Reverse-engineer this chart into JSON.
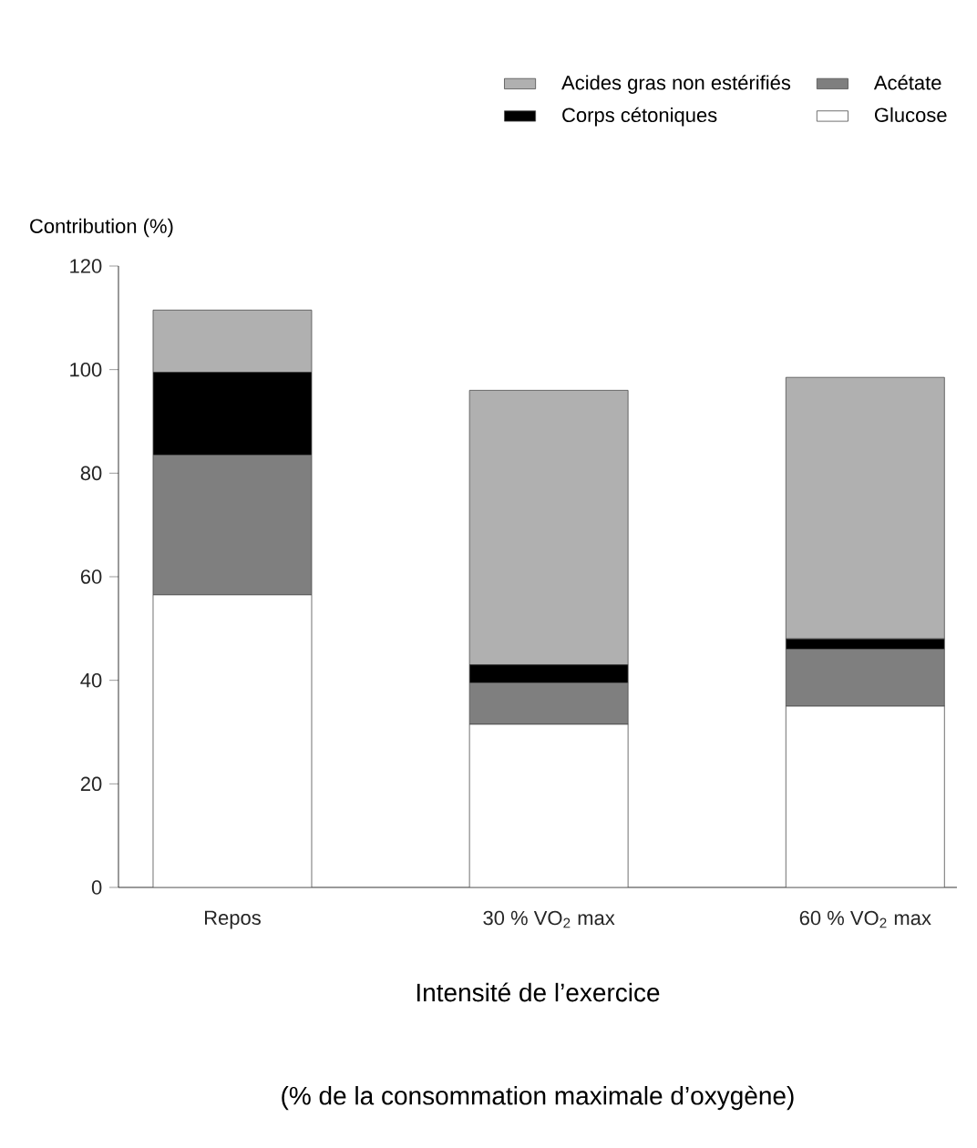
{
  "chart_data": {
    "type": "bar",
    "stacked": true,
    "ylabel": "Contribution (%)",
    "xlabel": "Intensité de l’exercice",
    "annotations": [
      "(% de la consommation maximale d’oxygène)"
    ],
    "categories": [
      "Repos",
      "30 % VO$_{2}$ max",
      "60 % VO$_{2}$ max"
    ],
    "series": [
      {
        "name": "Glucose",
        "color": "#ffffff",
        "values": [
          56.5,
          31.5,
          35
        ]
      },
      {
        "name": "Acétate",
        "color": "#7f7f7f",
        "values": [
          27,
          8,
          11
        ]
      },
      {
        "name": "Corps cétoniques",
        "color": "#000000",
        "values": [
          16,
          3.5,
          2
        ]
      },
      {
        "name": "Acides gras non estérifiés",
        "color": "#b0b0b0",
        "values": [
          12,
          53,
          50.5
        ]
      }
    ],
    "ylim": [
      0,
      120
    ],
    "yticks": [
      0,
      20,
      40,
      60,
      80,
      100,
      120
    ],
    "grid": false,
    "legend": "top right"
  }
}
